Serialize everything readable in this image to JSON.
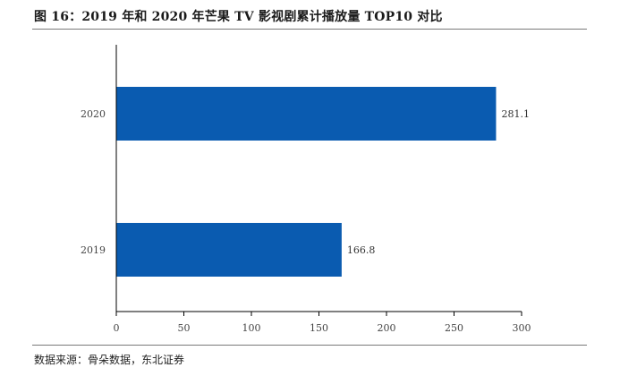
{
  "header": {
    "title": "图 16：2019 年和 2020 年芒果 TV 影视剧累计播放量 TOP10 对比"
  },
  "footer": {
    "source": "数据来源：骨朵数据，东北证券"
  },
  "colors": {
    "bar": "#0a5bb0",
    "axis": "#000000"
  },
  "chart_data": {
    "type": "bar",
    "orientation": "horizontal",
    "title": "图 16：2019 年和 2020 年芒果 TV 影视剧累计播放量 TOP10 对比",
    "categories": [
      "2020",
      "2019"
    ],
    "values": [
      281.1,
      166.8
    ],
    "value_labels": [
      "281.1",
      "166.8"
    ],
    "xlabel": "",
    "ylabel": "",
    "xlim": [
      0,
      300
    ],
    "xticks": [
      0,
      50,
      100,
      150,
      200,
      250,
      300
    ],
    "xtick_labels": [
      "0",
      "50",
      "100",
      "150",
      "200",
      "250",
      "300"
    ],
    "grid": false,
    "legend": "none"
  }
}
